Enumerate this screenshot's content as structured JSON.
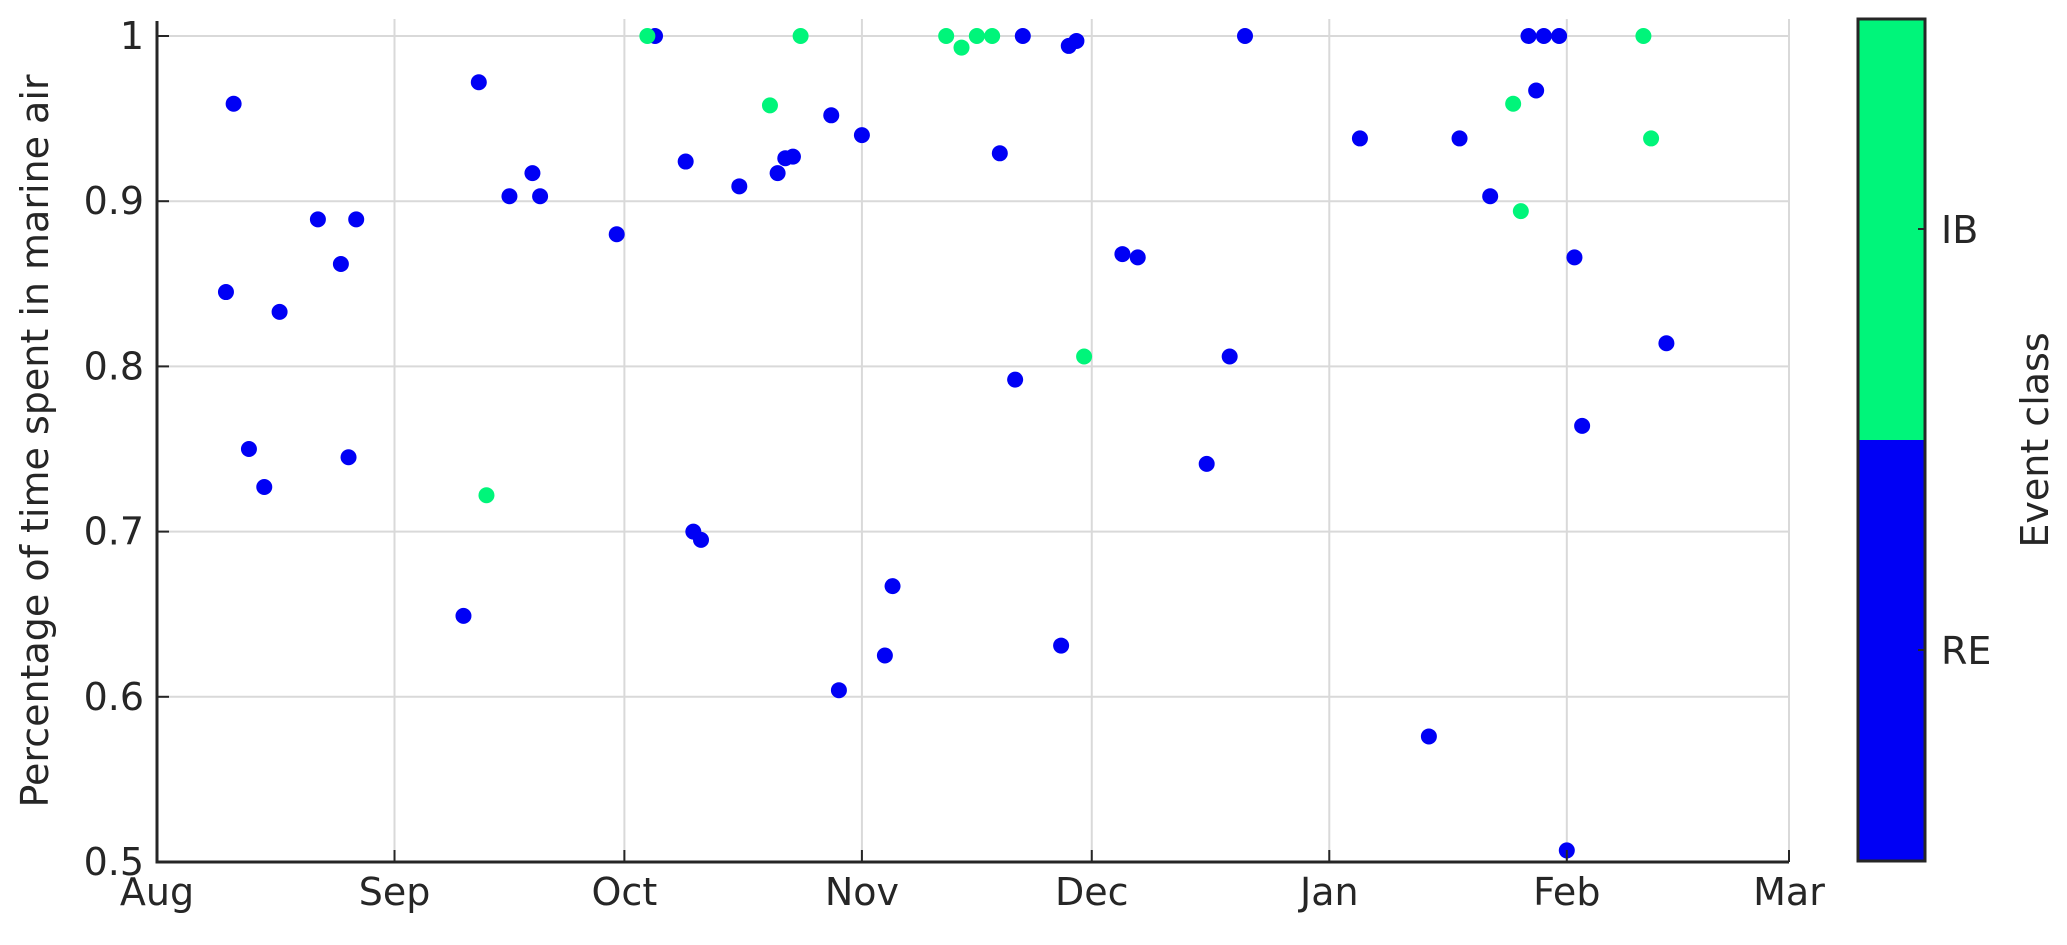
{
  "chart_data": {
    "type": "scatter",
    "title": "",
    "xlabel": "",
    "ylabel": "Percentage of time spent in marine air",
    "xlim": [
      "2015-08-01",
      "2016-03-01"
    ],
    "ylim": [
      0.5,
      1.0
    ],
    "grid": true,
    "x_ticks": [
      {
        "date": "2015-08-01",
        "label": "Aug"
      },
      {
        "date": "2015-09-01",
        "label": "Sep"
      },
      {
        "date": "2015-10-01",
        "label": "Oct"
      },
      {
        "date": "2015-11-01",
        "label": "Nov"
      },
      {
        "date": "2015-12-01",
        "label": "Dec"
      },
      {
        "date": "2016-01-01",
        "label": "Jan"
      },
      {
        "date": "2016-02-01",
        "label": "Feb"
      },
      {
        "date": "2016-03-01",
        "label": "Mar"
      }
    ],
    "y_ticks": [
      {
        "value": 0.5,
        "label": "0.5"
      },
      {
        "value": 0.6,
        "label": "0.6"
      },
      {
        "value": 0.7,
        "label": "0.7"
      },
      {
        "value": 0.8,
        "label": "0.8"
      },
      {
        "value": 0.9,
        "label": "0.9"
      },
      {
        "value": 1.0,
        "label": "1"
      }
    ],
    "colorbar": {
      "label": "Event class",
      "classes": [
        {
          "label": "RE",
          "color": "#0000f5"
        },
        {
          "label": "IB",
          "color": "#00f57a"
        }
      ]
    },
    "series": [
      {
        "name": "RE",
        "color": "#0000f5",
        "points": [
          [
            "2015-08-10",
            0.845
          ],
          [
            "2015-08-11",
            0.959
          ],
          [
            "2015-08-13",
            0.75
          ],
          [
            "2015-08-15",
            0.727
          ],
          [
            "2015-08-17",
            0.833
          ],
          [
            "2015-08-22",
            0.889
          ],
          [
            "2015-08-25",
            0.862
          ],
          [
            "2015-08-26",
            0.745
          ],
          [
            "2015-08-27",
            0.889
          ],
          [
            "2015-09-10",
            0.649
          ],
          [
            "2015-09-12",
            0.972
          ],
          [
            "2015-09-16",
            0.903
          ],
          [
            "2015-09-19",
            0.917
          ],
          [
            "2015-09-20",
            0.903
          ],
          [
            "2015-09-30",
            0.88
          ],
          [
            "2015-10-05",
            1.0
          ],
          [
            "2015-10-09",
            0.924
          ],
          [
            "2015-10-10",
            0.7
          ],
          [
            "2015-10-11",
            0.695
          ],
          [
            "2015-10-16",
            0.909
          ],
          [
            "2015-10-21",
            0.917
          ],
          [
            "2015-10-22",
            0.926
          ],
          [
            "2015-10-23",
            0.927
          ],
          [
            "2015-10-28",
            0.952
          ],
          [
            "2015-10-29",
            0.604
          ],
          [
            "2015-11-01",
            0.94
          ],
          [
            "2015-11-04",
            0.625
          ],
          [
            "2015-11-05",
            0.667
          ],
          [
            "2015-11-19",
            0.929
          ],
          [
            "2015-11-21",
            0.792
          ],
          [
            "2015-11-22",
            1.0
          ],
          [
            "2015-11-27",
            0.631
          ],
          [
            "2015-11-28",
            0.994
          ],
          [
            "2015-11-29",
            0.997
          ],
          [
            "2015-12-05",
            0.868
          ],
          [
            "2015-12-07",
            0.866
          ],
          [
            "2015-12-16",
            0.741
          ],
          [
            "2015-12-19",
            0.806
          ],
          [
            "2015-12-21",
            1.0
          ],
          [
            "2016-01-05",
            0.938
          ],
          [
            "2016-01-14",
            0.576
          ],
          [
            "2016-01-18",
            0.938
          ],
          [
            "2016-01-22",
            0.903
          ],
          [
            "2016-01-27",
            1.0
          ],
          [
            "2016-01-28",
            0.967
          ],
          [
            "2016-01-29",
            1.0
          ],
          [
            "2016-01-31",
            1.0
          ],
          [
            "2016-02-01",
            0.507
          ],
          [
            "2016-02-02",
            0.866
          ],
          [
            "2016-02-03",
            0.764
          ],
          [
            "2016-02-14",
            0.814
          ]
        ]
      },
      {
        "name": "IB",
        "color": "#00f57a",
        "points": [
          [
            "2015-10-04",
            1.0
          ],
          [
            "2015-09-13",
            0.722
          ],
          [
            "2015-10-20",
            0.958
          ],
          [
            "2015-10-24",
            1.0
          ],
          [
            "2015-11-12",
            1.0
          ],
          [
            "2015-11-14",
            0.993
          ],
          [
            "2015-11-16",
            1.0
          ],
          [
            "2015-11-18",
            1.0
          ],
          [
            "2015-11-30",
            0.806
          ],
          [
            "2016-01-25",
            0.959
          ],
          [
            "2016-01-26",
            0.894
          ],
          [
            "2016-02-11",
            1.0
          ],
          [
            "2016-02-12",
            0.938
          ]
        ]
      }
    ]
  }
}
